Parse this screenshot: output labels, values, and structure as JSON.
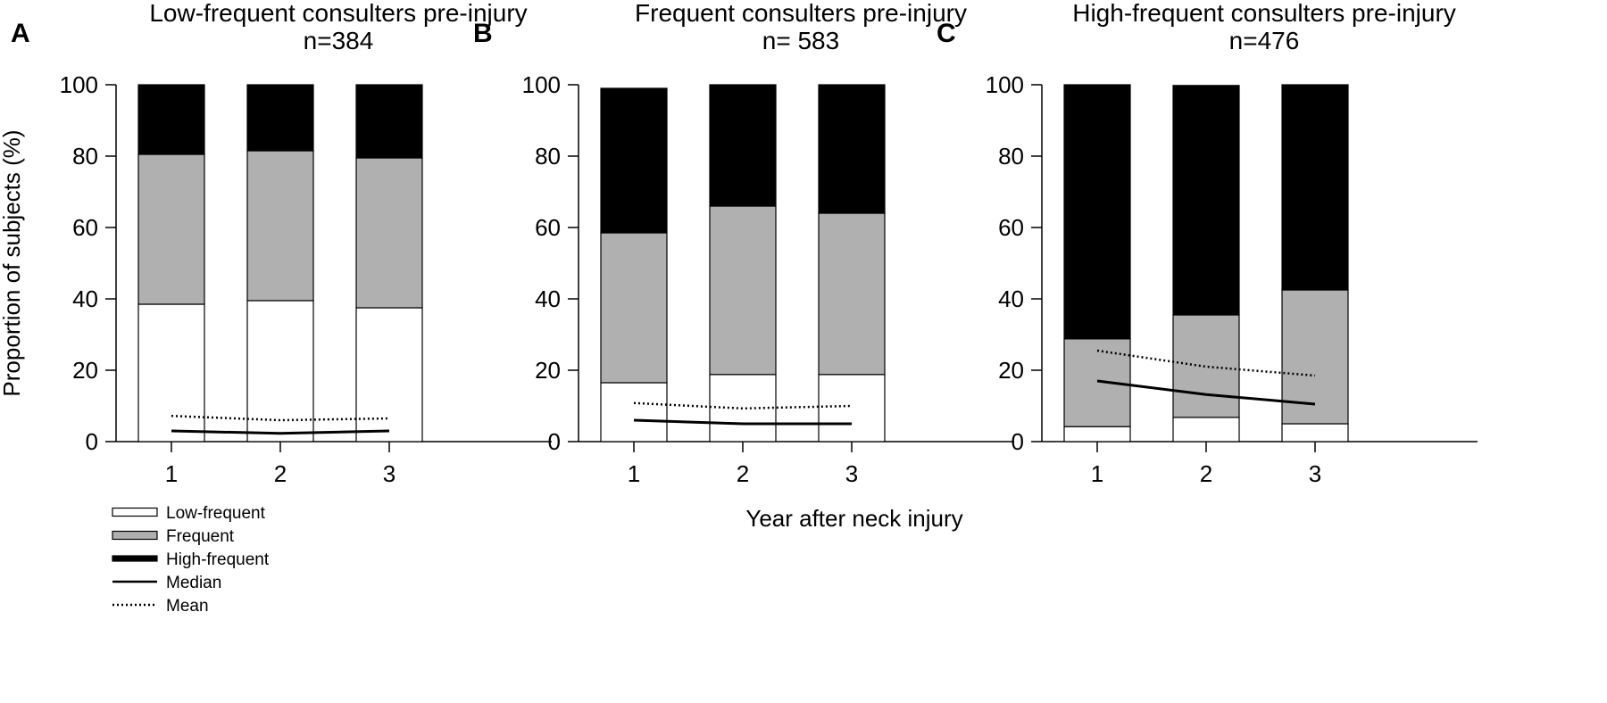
{
  "chart_data": {
    "type": "bar",
    "stacked": true,
    "xlabel": "Year after neck injury",
    "ylabel": "Proportion of subjects (%)",
    "ylim": [
      0,
      100
    ],
    "yticks": [
      0,
      20,
      40,
      60,
      80,
      100
    ],
    "categories": [
      "1",
      "2",
      "3"
    ],
    "legend": {
      "placement": "bottom-left",
      "items": [
        {
          "label": "Low-frequent",
          "kind": "bar",
          "color": "#ffffff"
        },
        {
          "label": "Frequent",
          "kind": "bar",
          "color": "#b0b0b0"
        },
        {
          "label": "High-frequent",
          "kind": "bar",
          "color": "#000000"
        },
        {
          "label": "Median",
          "kind": "line",
          "style": "solid"
        },
        {
          "label": "Mean",
          "kind": "line",
          "style": "dotted"
        }
      ]
    },
    "colors": {
      "low": "#ffffff",
      "frequent": "#b0b0b0",
      "high": "#000000"
    },
    "panels": [
      {
        "letter": "A",
        "title": "Low-frequent consulters pre-injury",
        "n_label": "n=384",
        "series": [
          {
            "name": "Low-frequent",
            "values": [
              38.5,
              39.5,
              37.5
            ]
          },
          {
            "name": "Frequent",
            "values": [
              42.0,
              42.0,
              42.0
            ]
          },
          {
            "name": "High-frequent",
            "values": [
              19.5,
              18.5,
              20.5
            ]
          }
        ],
        "median": [
          3.0,
          2.3,
          3.0
        ],
        "mean": [
          7.2,
          6.0,
          6.5
        ]
      },
      {
        "letter": "B",
        "title": "Frequent consulters pre-injury",
        "n_label": "n= 583",
        "series": [
          {
            "name": "Low-frequent",
            "values": [
              16.5,
              18.8,
              18.8
            ]
          },
          {
            "name": "Frequent",
            "values": [
              42.0,
              47.2,
              45.2
            ]
          },
          {
            "name": "High-frequent",
            "values": [
              40.5,
              34.0,
              36.0
            ]
          }
        ],
        "median": [
          6.0,
          5.0,
          5.0
        ],
        "mean": [
          10.8,
          9.3,
          10.0
        ]
      },
      {
        "letter": "C",
        "title": "High-frequent consulters pre-injury",
        "n_label": "n=476",
        "series": [
          {
            "name": "Low-frequent",
            "values": [
              4.2,
              6.8,
              5.0
            ]
          },
          {
            "name": "Frequent",
            "values": [
              24.6,
              28.7,
              37.5
            ]
          },
          {
            "name": "High-frequent",
            "values": [
              71.2,
              64.3,
              57.5
            ]
          }
        ],
        "median": [
          17.0,
          13.2,
          10.5
        ],
        "mean": [
          25.5,
          21.0,
          18.5
        ]
      }
    ]
  }
}
